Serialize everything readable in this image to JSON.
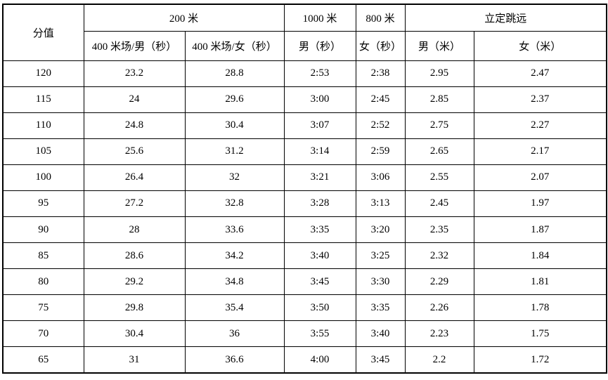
{
  "page": {
    "background": "#ffffff",
    "border_color": "#000000",
    "text_color": "#000000"
  },
  "table": {
    "corner_label": "分值",
    "groups": [
      {
        "label": "200 米"
      },
      {
        "label": "1000 米"
      },
      {
        "label": "800 米"
      },
      {
        "label": "立定跳远"
      }
    ],
    "subheaders": [
      "400 米场/男（秒）",
      "400 米场/女（秒）",
      "男（秒）",
      "女（秒）",
      "男（米）",
      "女（米）"
    ],
    "rows": [
      {
        "score": "120",
        "values": [
          "23.2",
          "28.8",
          "2:53",
          "2:38",
          "2.95",
          "2.47"
        ]
      },
      {
        "score": "115",
        "values": [
          "24",
          "29.6",
          "3:00",
          "2:45",
          "2.85",
          "2.37"
        ]
      },
      {
        "score": "110",
        "values": [
          "24.8",
          "30.4",
          "3:07",
          "2:52",
          "2.75",
          "2.27"
        ]
      },
      {
        "score": "105",
        "values": [
          "25.6",
          "31.2",
          "3:14",
          "2:59",
          "2.65",
          "2.17"
        ]
      },
      {
        "score": "100",
        "values": [
          "26.4",
          "32",
          "3:21",
          "3:06",
          "2.55",
          "2.07"
        ]
      },
      {
        "score": "95",
        "values": [
          "27.2",
          "32.8",
          "3:28",
          "3:13",
          "2.45",
          "1.97"
        ]
      },
      {
        "score": "90",
        "values": [
          "28",
          "33.6",
          "3:35",
          "3:20",
          "2.35",
          "1.87"
        ]
      },
      {
        "score": "85",
        "values": [
          "28.6",
          "34.2",
          "3:40",
          "3:25",
          "2.32",
          "1.84"
        ]
      },
      {
        "score": "80",
        "values": [
          "29.2",
          "34.8",
          "3:45",
          "3:30",
          "2.29",
          "1.81"
        ]
      },
      {
        "score": "75",
        "values": [
          "29.8",
          "35.4",
          "3:50",
          "3:35",
          "2.26",
          "1.78"
        ]
      },
      {
        "score": "70",
        "values": [
          "30.4",
          "36",
          "3:55",
          "3:40",
          "2.23",
          "1.75"
        ]
      },
      {
        "score": "65",
        "values": [
          "31",
          "36.6",
          "4:00",
          "3:45",
          "2.2",
          "1.72"
        ]
      }
    ]
  }
}
